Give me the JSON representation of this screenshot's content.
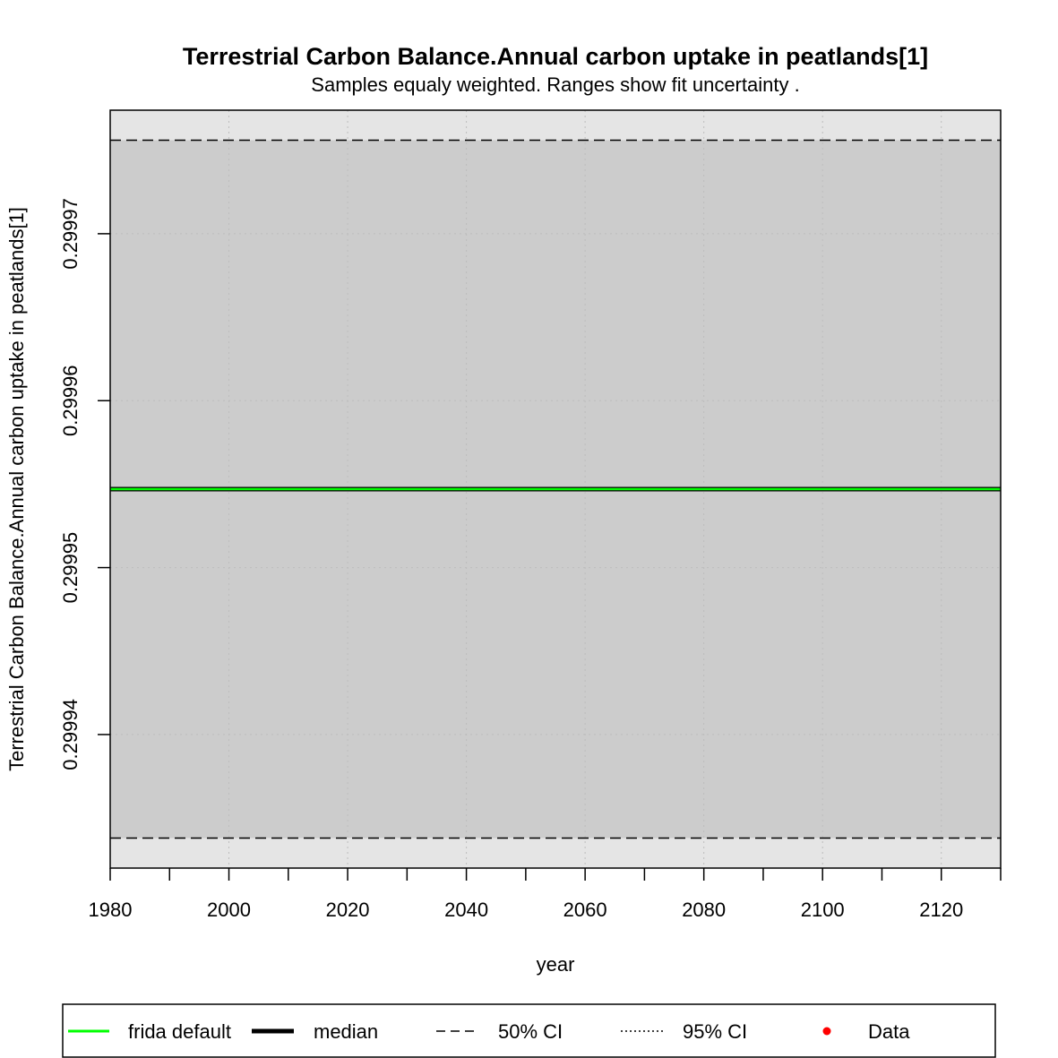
{
  "chart_data": {
    "type": "line",
    "title": "Terrestrial Carbon Balance.Annual carbon uptake in peatlands[1]",
    "subtitle": "Samples equaly weighted. Ranges show  fit uncertainty .",
    "xlabel": "year",
    "ylabel": "Terrestrial Carbon Balance.Annual carbon uptake in peatlands[1]",
    "xlim": [
      1980,
      2130
    ],
    "ylim": [
      0.299932,
      0.2999774
    ],
    "x_ticks": [
      1980,
      2000,
      2020,
      2040,
      2060,
      2080,
      2100,
      2120
    ],
    "x_ticks_minor": [
      1990,
      2010,
      2030,
      2050,
      2070,
      2090,
      2110,
      2130
    ],
    "y_ticks": [
      0.29994,
      0.29995,
      0.29996,
      0.29997
    ],
    "y_tick_labels": [
      "0.29994",
      "0.29995",
      "0.29996",
      "0.29997"
    ],
    "grid": true,
    "x_range": [
      1980,
      2130
    ],
    "ranges": {
      "ci95": {
        "low": 0.299932,
        "high": 0.2999774
      },
      "ci50": {
        "low": 0.2999338,
        "high": 0.2999756
      }
    },
    "series": [
      {
        "name": "frida default",
        "style": "solid",
        "color": "#00ff00",
        "x": [
          1980,
          2130
        ],
        "y": [
          0.2999547,
          0.2999547
        ]
      },
      {
        "name": "median",
        "style": "solid",
        "color": "#000000",
        "x": [
          1980,
          2130
        ],
        "y": [
          0.2999547,
          0.2999547
        ]
      },
      {
        "name": "50% CI",
        "style": "dashed",
        "color": "#000000",
        "x": [
          1980,
          2130
        ],
        "y_low": [
          0.2999338,
          0.2999338
        ],
        "y_high": [
          0.2999756,
          0.2999756
        ]
      },
      {
        "name": "95% CI",
        "style": "dotted",
        "color": "#000000"
      },
      {
        "name": "Data",
        "style": "point",
        "color": "#ff0000"
      }
    ],
    "legend": {
      "position": "bottom",
      "entries": [
        "frida default",
        "median",
        "50% CI",
        "95% CI",
        "Data"
      ]
    },
    "colors": {
      "band95": "#e5e5e5",
      "band50": "#cccccc",
      "frida": "#00ff00",
      "median": "#000000",
      "data": "#ff0000",
      "grid": "#bdbdbd"
    }
  }
}
